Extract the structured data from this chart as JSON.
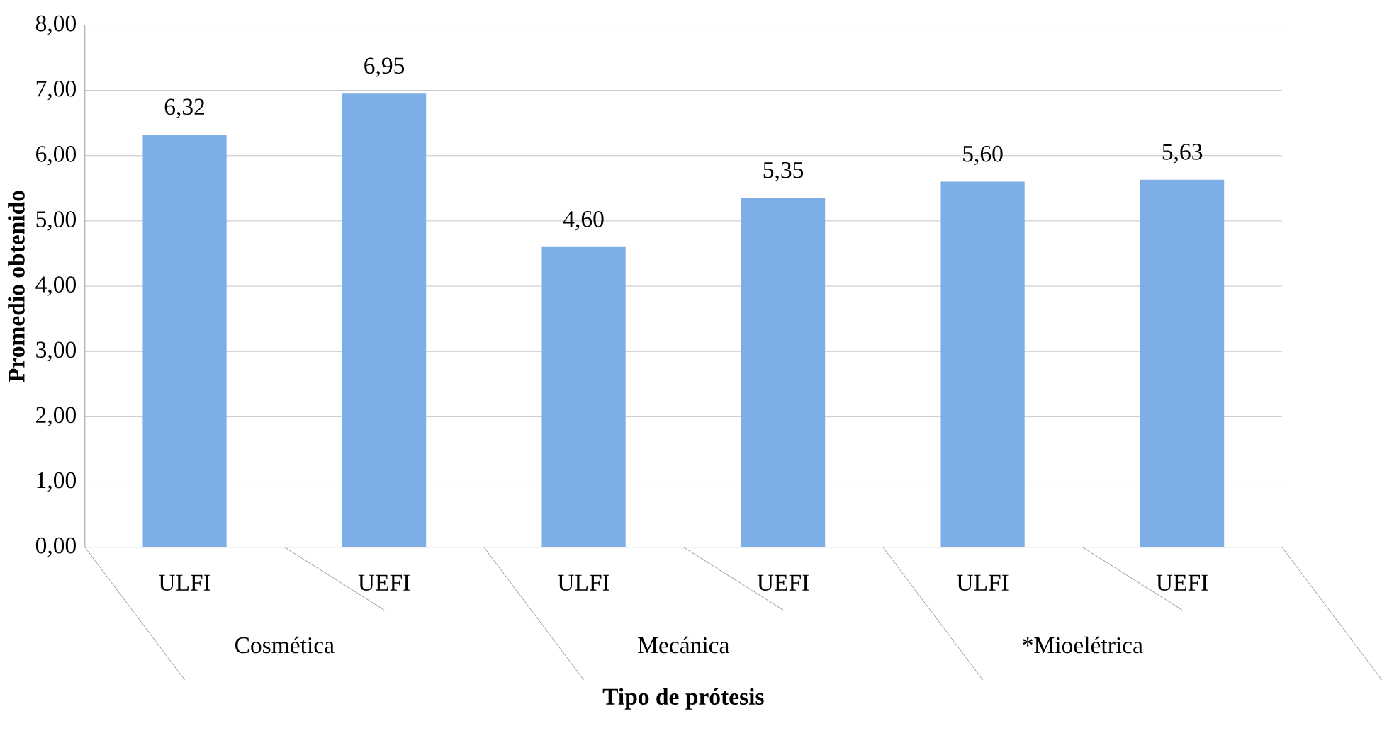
{
  "chart_data": {
    "type": "bar",
    "xlabel": "Tipo de prótesis",
    "ylabel": "Promedio obtenido",
    "categories": [
      "ULFI",
      "UEFI",
      "ULFI",
      "UEFI",
      "ULFI",
      "UEFI"
    ],
    "values": [
      6.32,
      6.95,
      4.6,
      5.35,
      5.6,
      5.63
    ],
    "value_labels": [
      "6,32",
      "6,95",
      "4,60",
      "5,35",
      "5,60",
      "5,63"
    ],
    "color": "#7eaee6",
    "ylim": [
      0,
      8
    ],
    "yticks": [
      {
        "value": 0,
        "label": "0,00"
      },
      {
        "value": 1,
        "label": "1,00"
      },
      {
        "value": 2,
        "label": "2,00"
      },
      {
        "value": 3,
        "label": "3,00"
      },
      {
        "value": 4,
        "label": "4,00"
      },
      {
        "value": 5,
        "label": "5,00"
      },
      {
        "value": 6,
        "label": "6,00"
      },
      {
        "value": 7,
        "label": "7,00"
      },
      {
        "value": 8,
        "label": "8,00"
      }
    ],
    "grid": "y",
    "annotations": [
      "Cosmética",
      "Mecánica",
      "*Mioelétrica"
    ]
  }
}
